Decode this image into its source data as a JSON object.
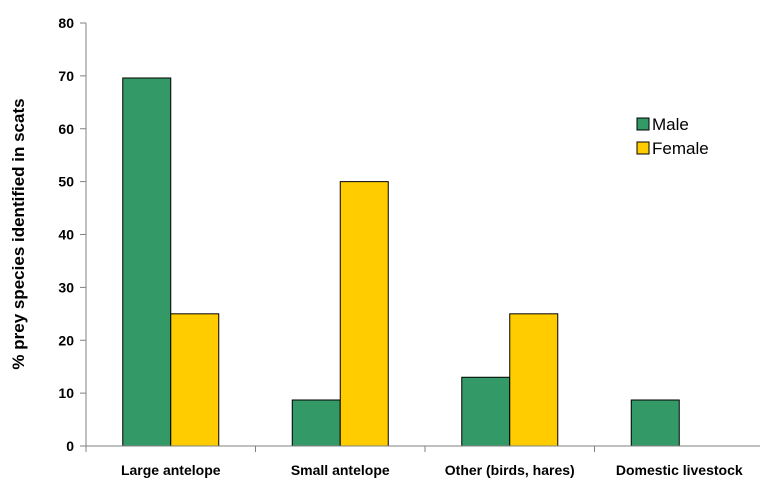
{
  "chart_data": {
    "type": "bar",
    "title": "",
    "xlabel": "",
    "ylabel": "% prey species identified in scats",
    "ylim": [
      0,
      80
    ],
    "yticks": [
      0,
      10,
      20,
      30,
      40,
      50,
      60,
      70,
      80
    ],
    "categories": [
      "Large antelope",
      "Small antelope",
      "Other (birds, hares)",
      "Domestic livestock"
    ],
    "series": [
      {
        "name": "Male",
        "color": "#339966",
        "values": [
          69.6,
          8.7,
          13.0,
          8.7
        ]
      },
      {
        "name": "Female",
        "color": "#FFCC00",
        "values": [
          25,
          50,
          25,
          0
        ]
      }
    ],
    "legend_position": "top-right",
    "grid": false
  }
}
